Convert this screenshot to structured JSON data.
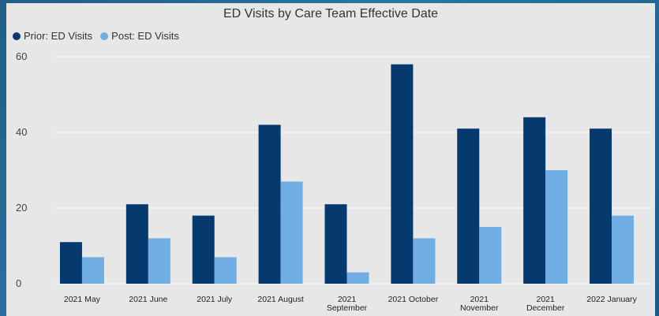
{
  "chart_data": {
    "type": "bar",
    "title": "ED Visits by Care Team Effective Date",
    "categories": [
      [
        "2021 May"
      ],
      [
        "2021 June"
      ],
      [
        "2021 July"
      ],
      [
        "2021 August"
      ],
      [
        "2021",
        "September"
      ],
      [
        "2021 October"
      ],
      [
        "2021",
        "November"
      ],
      [
        "2021",
        "December"
      ],
      [
        "2022 January"
      ]
    ],
    "series": [
      {
        "name": "Prior: ED Visits",
        "color": "#063a6e",
        "values": [
          11,
          21,
          18,
          42,
          21,
          58,
          41,
          44,
          41
        ]
      },
      {
        "name": "Post: ED Visits",
        "color": "#70aee3",
        "values": [
          7,
          12,
          7,
          27,
          3,
          12,
          15,
          30,
          18
        ]
      }
    ],
    "yticks": [
      0,
      20,
      40,
      60
    ],
    "ylim": [
      0,
      60
    ],
    "legend_position": "top-left",
    "grid": true
  }
}
